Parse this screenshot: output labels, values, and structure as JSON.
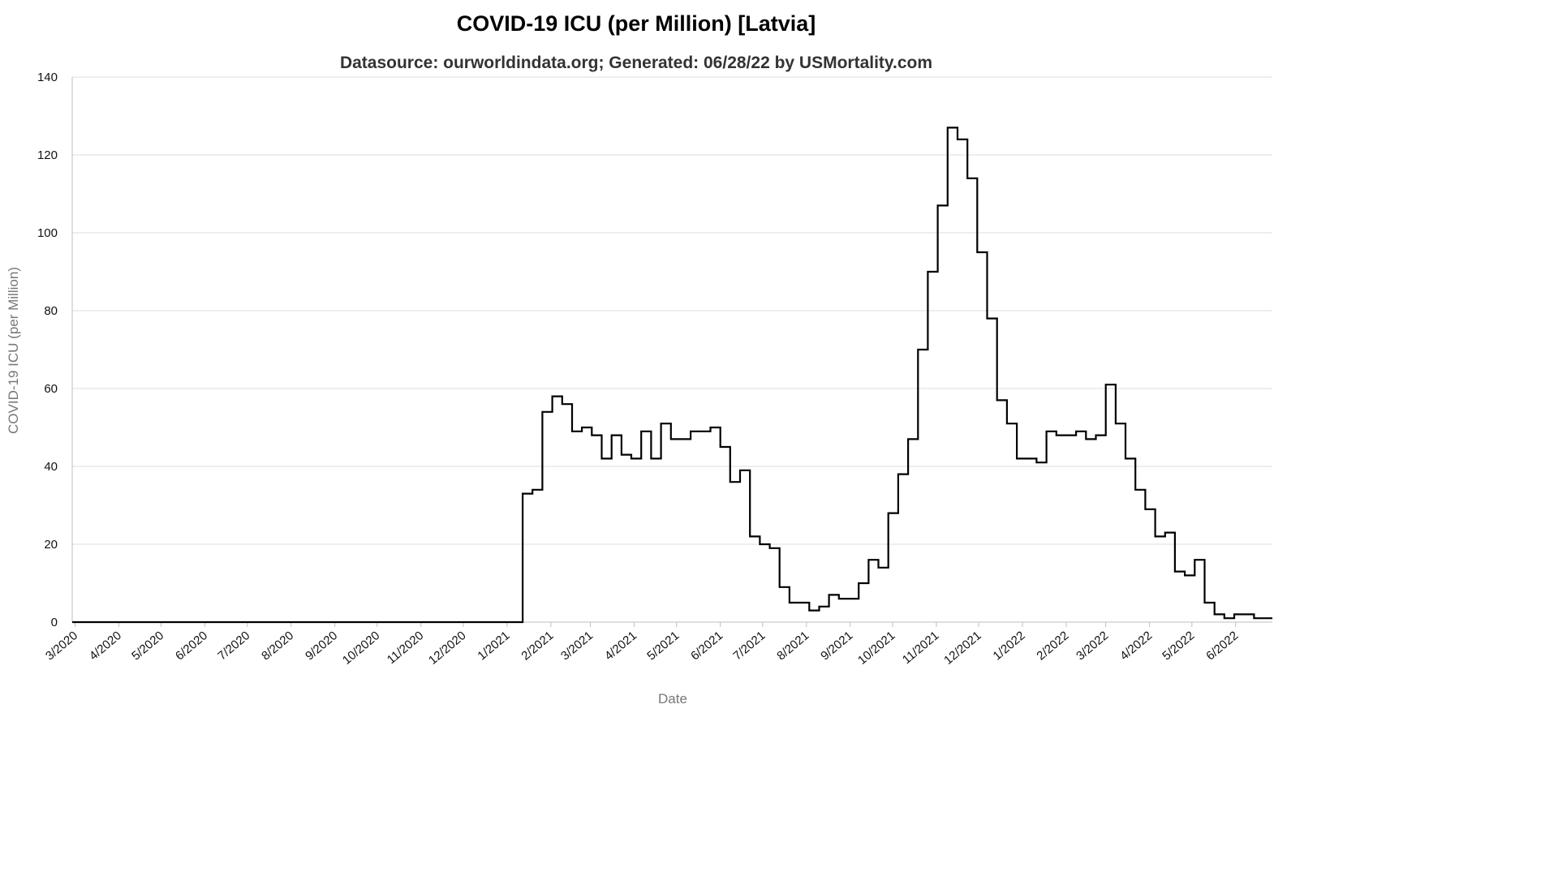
{
  "chart_data": {
    "type": "line",
    "title": "COVID-19 ICU (per Million) [Latvia]",
    "subtitle": "Datasource: ourworldindata.org; Generated: 06/28/22 by USMortality.com",
    "xlabel": "Date",
    "ylabel": "COVID-19 ICU (per Million)",
    "ylim": [
      0,
      140
    ],
    "yticks": [
      0,
      20,
      40,
      60,
      80,
      100,
      120,
      140
    ],
    "xlim": [
      "2020-02-28",
      "2022-06-27"
    ],
    "xticks": [
      "3/2020",
      "4/2020",
      "5/2020",
      "6/2020",
      "7/2020",
      "8/2020",
      "9/2020",
      "10/2020",
      "11/2020",
      "12/2020",
      "1/2021",
      "2/2021",
      "3/2021",
      "4/2021",
      "5/2021",
      "6/2021",
      "7/2021",
      "8/2021",
      "9/2021",
      "10/2021",
      "11/2021",
      "12/2021",
      "1/2022",
      "2/2022",
      "3/2022",
      "4/2022",
      "5/2022",
      "6/2022"
    ],
    "grid": true,
    "line_shape": "step",
    "series": [
      {
        "color": "#000000",
        "points": [
          [
            "2020-02-28",
            0
          ],
          [
            "2021-01-12",
            0
          ],
          [
            "2021-01-12",
            33
          ],
          [
            "2021-01-19",
            34
          ],
          [
            "2021-01-26",
            54
          ],
          [
            "2021-02-02",
            58
          ],
          [
            "2021-02-09",
            56
          ],
          [
            "2021-02-16",
            49
          ],
          [
            "2021-02-23",
            50
          ],
          [
            "2021-03-02",
            48
          ],
          [
            "2021-03-09",
            42
          ],
          [
            "2021-03-16",
            48
          ],
          [
            "2021-03-23",
            43
          ],
          [
            "2021-03-30",
            42
          ],
          [
            "2021-04-06",
            49
          ],
          [
            "2021-04-13",
            42
          ],
          [
            "2021-04-20",
            51
          ],
          [
            "2021-04-27",
            47
          ],
          [
            "2021-05-04",
            47
          ],
          [
            "2021-05-11",
            49
          ],
          [
            "2021-05-18",
            49
          ],
          [
            "2021-05-25",
            50
          ],
          [
            "2021-06-01",
            45
          ],
          [
            "2021-06-08",
            36
          ],
          [
            "2021-06-15",
            39
          ],
          [
            "2021-06-22",
            22
          ],
          [
            "2021-06-29",
            20
          ],
          [
            "2021-07-06",
            19
          ],
          [
            "2021-07-13",
            9
          ],
          [
            "2021-07-20",
            5
          ],
          [
            "2021-07-27",
            5
          ],
          [
            "2021-08-03",
            3
          ],
          [
            "2021-08-10",
            4
          ],
          [
            "2021-08-17",
            7
          ],
          [
            "2021-08-24",
            6
          ],
          [
            "2021-08-31",
            6
          ],
          [
            "2021-09-07",
            10
          ],
          [
            "2021-09-14",
            16
          ],
          [
            "2021-09-21",
            14
          ],
          [
            "2021-09-28",
            28
          ],
          [
            "2021-10-05",
            38
          ],
          [
            "2021-10-12",
            47
          ],
          [
            "2021-10-19",
            70
          ],
          [
            "2021-10-26",
            90
          ],
          [
            "2021-11-02",
            107
          ],
          [
            "2021-11-09",
            127
          ],
          [
            "2021-11-16",
            124
          ],
          [
            "2021-11-23",
            114
          ],
          [
            "2021-11-30",
            95
          ],
          [
            "2021-12-07",
            78
          ],
          [
            "2021-12-14",
            57
          ],
          [
            "2021-12-21",
            51
          ],
          [
            "2021-12-28",
            42
          ],
          [
            "2022-01-04",
            42
          ],
          [
            "2022-01-11",
            41
          ],
          [
            "2022-01-18",
            49
          ],
          [
            "2022-01-25",
            48
          ],
          [
            "2022-02-01",
            48
          ],
          [
            "2022-02-08",
            49
          ],
          [
            "2022-02-15",
            47
          ],
          [
            "2022-02-22",
            48
          ],
          [
            "2022-03-01",
            61
          ],
          [
            "2022-03-08",
            51
          ],
          [
            "2022-03-15",
            42
          ],
          [
            "2022-03-22",
            34
          ],
          [
            "2022-03-29",
            29
          ],
          [
            "2022-04-05",
            22
          ],
          [
            "2022-04-12",
            23
          ],
          [
            "2022-04-19",
            13
          ],
          [
            "2022-04-26",
            12
          ],
          [
            "2022-05-03",
            16
          ],
          [
            "2022-05-10",
            5
          ],
          [
            "2022-05-17",
            2
          ],
          [
            "2022-05-24",
            1
          ],
          [
            "2022-05-31",
            2
          ],
          [
            "2022-06-07",
            2
          ],
          [
            "2022-06-14",
            1
          ],
          [
            "2022-06-27",
            1
          ]
        ]
      }
    ]
  }
}
